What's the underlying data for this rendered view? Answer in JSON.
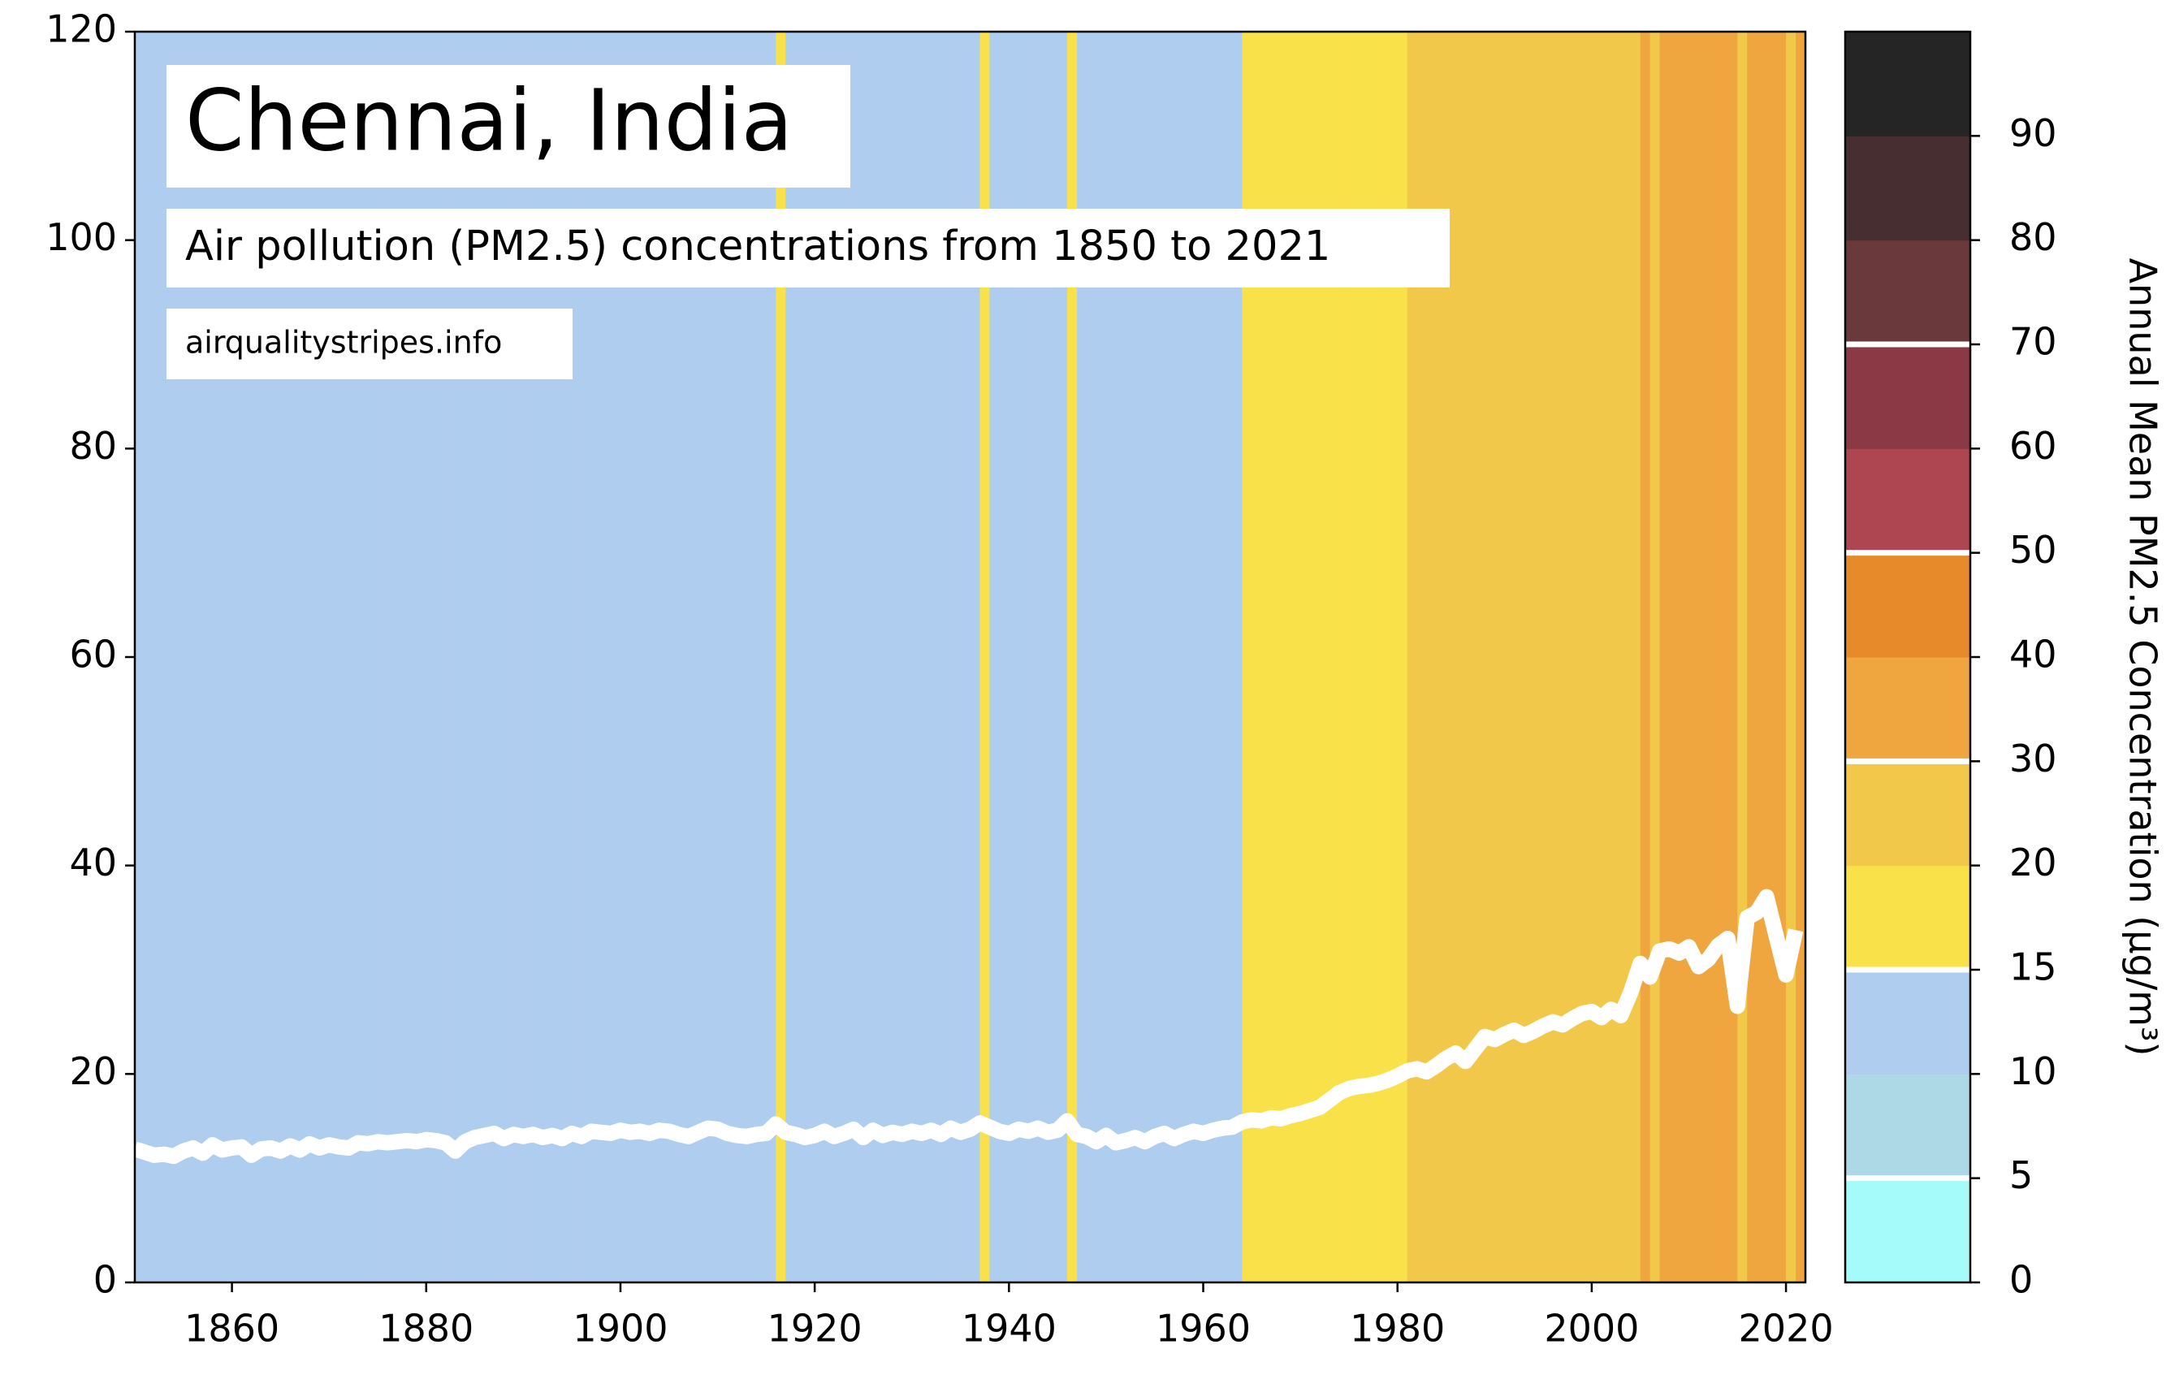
{
  "chart_data": {
    "type": "line",
    "title": "Chennai, India",
    "subtitle": "Air pollution (PM2.5) concentrations from 1850 to 2021",
    "source": "airqualitystripes.info",
    "x": [
      1850,
      1851,
      1852,
      1853,
      1854,
      1855,
      1856,
      1857,
      1858,
      1859,
      1860,
      1861,
      1862,
      1863,
      1864,
      1865,
      1866,
      1867,
      1868,
      1869,
      1870,
      1871,
      1872,
      1873,
      1874,
      1875,
      1876,
      1877,
      1878,
      1879,
      1880,
      1881,
      1882,
      1883,
      1884,
      1885,
      1886,
      1887,
      1888,
      1889,
      1890,
      1891,
      1892,
      1893,
      1894,
      1895,
      1896,
      1897,
      1898,
      1899,
      1900,
      1901,
      1902,
      1903,
      1904,
      1905,
      1906,
      1907,
      1908,
      1909,
      1910,
      1911,
      1912,
      1913,
      1914,
      1915,
      1916,
      1917,
      1918,
      1919,
      1920,
      1921,
      1922,
      1923,
      1924,
      1925,
      1926,
      1927,
      1928,
      1929,
      1930,
      1931,
      1932,
      1933,
      1934,
      1935,
      1936,
      1937,
      1938,
      1939,
      1940,
      1941,
      1942,
      1943,
      1944,
      1945,
      1946,
      1947,
      1948,
      1949,
      1950,
      1951,
      1952,
      1953,
      1954,
      1955,
      1956,
      1957,
      1958,
      1959,
      1960,
      1961,
      1962,
      1963,
      1964,
      1965,
      1966,
      1967,
      1968,
      1969,
      1970,
      1971,
      1972,
      1973,
      1974,
      1975,
      1976,
      1977,
      1978,
      1979,
      1980,
      1981,
      1982,
      1983,
      1984,
      1985,
      1986,
      1987,
      1988,
      1989,
      1990,
      1991,
      1992,
      1993,
      1994,
      1995,
      1996,
      1997,
      1998,
      1999,
      2000,
      2001,
      2002,
      2003,
      2004,
      2005,
      2006,
      2007,
      2008,
      2009,
      2010,
      2011,
      2012,
      2013,
      2014,
      2015,
      2016,
      2017,
      2018,
      2019,
      2020,
      2021
    ],
    "values": [
      12.8,
      12.5,
      12.2,
      12.3,
      12.1,
      12.6,
      12.9,
      12.4,
      13.2,
      12.7,
      12.9,
      13.0,
      12.2,
      12.8,
      12.9,
      12.6,
      13.1,
      12.7,
      13.3,
      12.9,
      13.2,
      13.0,
      12.9,
      13.4,
      13.3,
      13.5,
      13.4,
      13.5,
      13.6,
      13.5,
      13.7,
      13.6,
      13.4,
      12.6,
      13.5,
      13.9,
      14.1,
      14.3,
      13.8,
      14.2,
      14.0,
      14.2,
      13.9,
      14.1,
      13.8,
      14.3,
      14.0,
      14.5,
      14.4,
      14.3,
      14.6,
      14.4,
      14.5,
      14.3,
      14.6,
      14.5,
      14.2,
      14.0,
      14.4,
      14.8,
      14.7,
      14.3,
      14.1,
      14.0,
      14.2,
      14.3,
      15.2,
      14.4,
      14.2,
      13.9,
      14.1,
      14.5,
      14.0,
      14.3,
      14.7,
      13.9,
      14.6,
      14.1,
      14.4,
      14.2,
      14.5,
      14.3,
      14.6,
      14.2,
      14.8,
      14.4,
      14.7,
      15.3,
      14.9,
      14.5,
      14.3,
      14.7,
      14.5,
      14.8,
      14.4,
      14.6,
      15.5,
      14.2,
      14.0,
      13.5,
      14.1,
      13.4,
      13.6,
      13.9,
      13.5,
      14.0,
      14.3,
      13.8,
      14.2,
      14.5,
      14.3,
      14.6,
      14.8,
      14.9,
      15.4,
      15.6,
      15.5,
      15.8,
      15.7,
      16.0,
      16.2,
      16.5,
      16.8,
      17.5,
      18.2,
      18.6,
      18.8,
      18.9,
      19.1,
      19.4,
      19.8,
      20.3,
      20.5,
      20.2,
      20.8,
      21.5,
      22.0,
      21.2,
      22.4,
      23.6,
      23.3,
      23.8,
      24.2,
      23.7,
      24.1,
      24.6,
      25.0,
      24.7,
      25.3,
      25.8,
      26.0,
      25.4,
      26.2,
      25.6,
      27.8,
      30.6,
      29.3,
      31.8,
      32.0,
      31.6,
      32.2,
      30.3,
      31.0,
      32.3,
      33.0,
      26.5,
      35.0,
      35.5,
      37.0,
      33.2,
      29.5,
      33.8
    ],
    "line_color": "#ffffff",
    "xlim": [
      1850,
      2022
    ],
    "xticks": [
      1860,
      1880,
      1900,
      1920,
      1940,
      1960,
      1980,
      2000,
      2020
    ],
    "ylim": [
      0,
      120
    ],
    "yticks": [
      0,
      20,
      40,
      60,
      80,
      100,
      120
    ],
    "colorbar": {
      "label": "Annual Mean PM2.5 Concentration (µg/m³)",
      "bounds": [
        0,
        5,
        10,
        15,
        20,
        30,
        40,
        50,
        60,
        70,
        80,
        90,
        100
      ],
      "colors": [
        "#a4fbf9",
        "#add8e6",
        "#afcdee",
        "#f9e14a",
        "#f2c84a",
        "#f0a63f",
        "#e68a2a",
        "#ae4652",
        "#8b3945",
        "#6a393c",
        "#472e30",
        "#252525"
      ],
      "ticks": [
        0,
        5,
        10,
        15,
        20,
        30,
        40,
        50,
        60,
        70,
        80,
        90
      ],
      "lines": [
        5,
        15,
        30,
        50,
        70
      ]
    }
  }
}
